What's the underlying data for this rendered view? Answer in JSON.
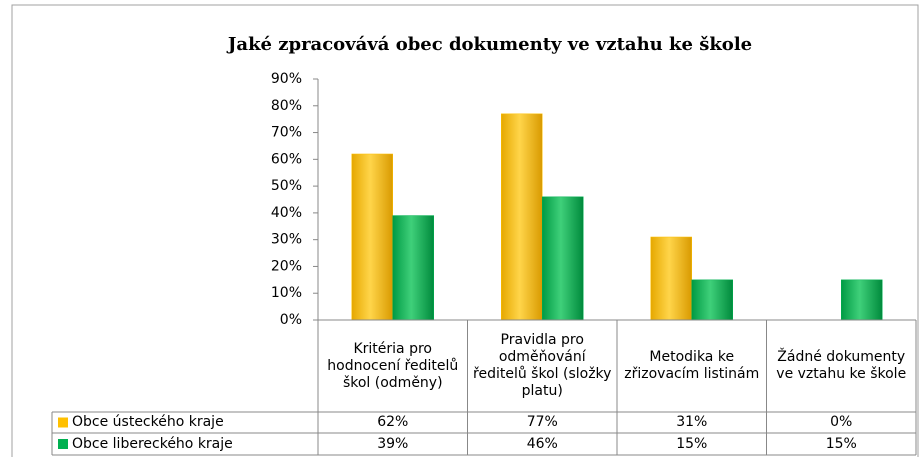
{
  "chart_data": {
    "type": "bar",
    "title": "Jaké zpracovává obec dokumenty ve vztahu ke škole",
    "categories": [
      "Kritéria pro hodnocení ředitelů škol (odměny)",
      "Pravidla pro odměňování ředitelů škol (složky platu)",
      "Metodika ke zřizovacím listinám",
      "Žádné dokumenty ve vztahu ke škole"
    ],
    "series": [
      {
        "name": "Obce ústeckého kraje",
        "color": "#ffc000",
        "values": [
          62,
          77,
          31,
          0
        ],
        "value_labels": [
          "62%",
          "77%",
          "31%",
          "0%"
        ]
      },
      {
        "name": "Obce libereckého kraje",
        "color": "#00b050",
        "values": [
          39,
          46,
          15,
          15
        ],
        "value_labels": [
          "39%",
          "46%",
          "15%",
          "15%"
        ]
      }
    ],
    "ylim": [
      0,
      90
    ],
    "yticks": [
      {
        "value": 0,
        "label": "0%"
      },
      {
        "value": 10,
        "label": "10%"
      },
      {
        "value": 20,
        "label": "20%"
      },
      {
        "value": 30,
        "label": "30%"
      },
      {
        "value": 40,
        "label": "40%"
      },
      {
        "value": 50,
        "label": "50%"
      },
      {
        "value": 60,
        "label": "60%"
      },
      {
        "value": 70,
        "label": "70%"
      },
      {
        "value": 80,
        "label": "80%"
      },
      {
        "value": 90,
        "label": "90%"
      }
    ],
    "grid": false
  }
}
